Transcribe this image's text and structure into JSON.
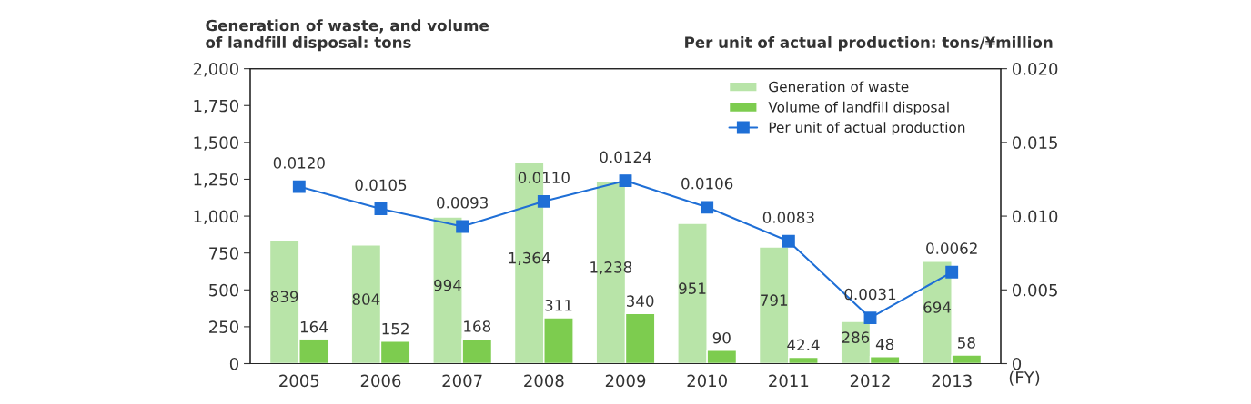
{
  "chart_data": {
    "type": "bar",
    "categories": [
      "2005",
      "2006",
      "2007",
      "2008",
      "2009",
      "2010",
      "2011",
      "2012",
      "2013"
    ],
    "xlabel": "(FY)",
    "ylabel": "Generation of waste, and volume\nof landfill disposal: tons",
    "y2label": "Per unit of actual production: tons/¥million",
    "series": [
      {
        "name": "Generation of waste",
        "color": "#b8e4a8",
        "values": [
          839,
          804,
          994,
          1364,
          1238,
          951,
          791,
          286,
          694
        ],
        "value_labels": [
          "839",
          "804",
          "994",
          "1,364",
          "1,238",
          "951",
          "791",
          "286",
          "694"
        ]
      },
      {
        "name": "Volume of landfill disposal",
        "color": "#7dcc4f",
        "values": [
          164,
          152,
          168,
          311,
          340,
          90,
          42.4,
          48,
          58
        ],
        "value_labels": [
          "164",
          "152",
          "168",
          "311",
          "340",
          "90",
          "42.4",
          "48",
          "58"
        ]
      },
      {
        "name": "Per unit of actual production",
        "type": "line",
        "axis": "y2",
        "color": "#1f6fd6",
        "marker": "square",
        "values": [
          0.012,
          0.0105,
          0.0093,
          0.011,
          0.0124,
          0.0106,
          0.0083,
          0.0031,
          0.0062
        ],
        "value_labels": [
          "0.0120",
          "0.0105",
          "0.0093",
          "0.0110",
          "0.0124",
          "0.0106",
          "0.0083",
          "0.0031",
          "0.0062"
        ]
      }
    ],
    "ylim": [
      0,
      2000
    ],
    "yticks": [
      0,
      250,
      500,
      750,
      {
        "value": 1000,
        "label": "1,000"
      },
      {
        "value": 1250,
        "label": "1,250"
      },
      {
        "value": 1500,
        "label": "1,500"
      },
      {
        "value": 1750,
        "label": "1,750"
      },
      {
        "value": 2000,
        "label": "2,000"
      }
    ],
    "y2lim": [
      0,
      0.02
    ],
    "y2ticks": [
      0,
      0.005,
      {
        "value": 0.01,
        "label": "0.010"
      },
      0.015,
      {
        "value": 0.02,
        "label": "0.020"
      }
    ],
    "legend": "top right",
    "grid": false
  }
}
